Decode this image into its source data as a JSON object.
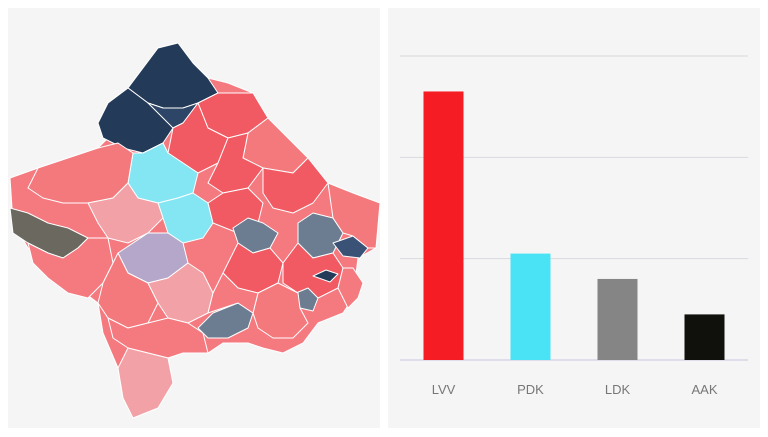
{
  "map": {
    "colors": {
      "light_pink": "#f2a1a6",
      "pink": "#f3797d",
      "salmon": "#f47a80",
      "red": "#f15a62",
      "navy": "#233a59",
      "slate": "#6c7d92",
      "cyan": "#84e5f3",
      "lavender": "#b5a7c9",
      "olive_gray": "#6b685f"
    }
  },
  "chart_data": {
    "type": "bar",
    "categories": [
      "LVV",
      "PDK",
      "LDK",
      "AAK"
    ],
    "values": [
      53,
      21,
      16,
      9
    ],
    "colors": [
      "#f51c24",
      "#49e3f5",
      "#858585",
      "#10100c"
    ],
    "ylim": [
      0,
      60
    ],
    "grid": true,
    "title": "",
    "xlabel": "",
    "ylabel": ""
  }
}
